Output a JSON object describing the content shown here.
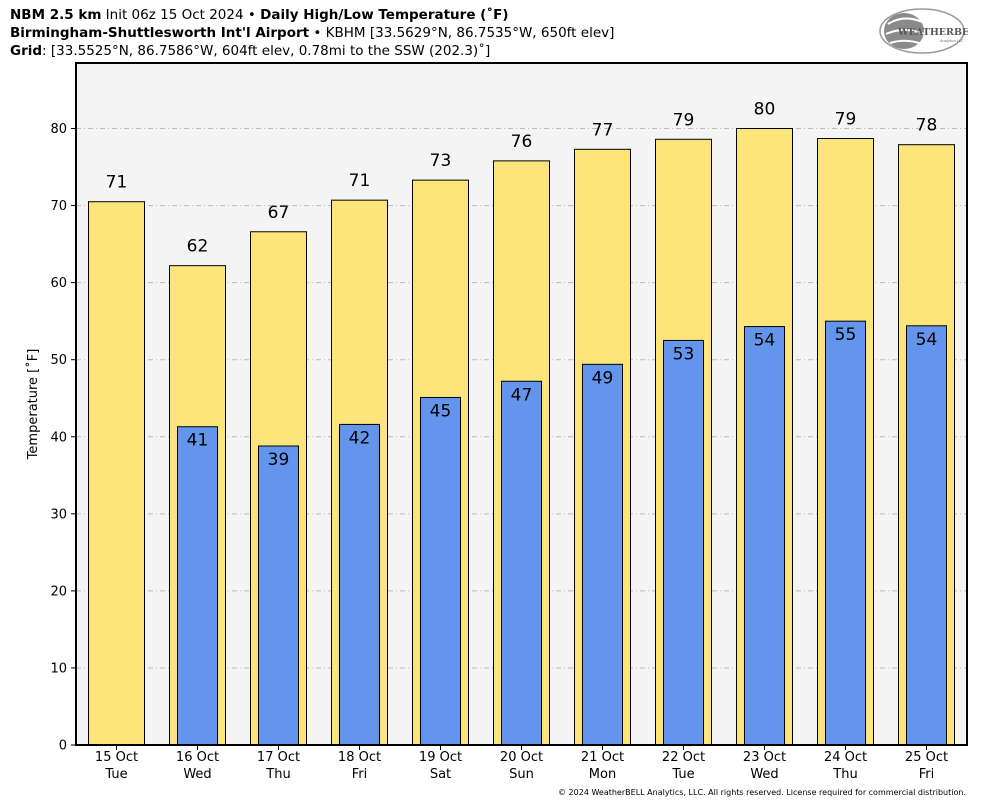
{
  "header": {
    "line1_bold1": "NBM 2.5 km",
    "line1_normal": " Init 06z 15 Oct 2024 • ",
    "line1_bold2": "Daily High/Low Temperature (˚F)",
    "line2_bold": "Birmingham-Shuttlesworth Int'l Airport",
    "line2_normal": " • KBHM [33.5629°N, 86.7535°W, 650ft elev]",
    "line3_bold": "Grid",
    "line3_normal": ": [33.5525°N, 86.7586°W, 604ft elev, 0.78mi to the SSW (202.3)˚]"
  },
  "logo": {
    "text": "WEATHERBELL",
    "subtext": "Analytics LLC"
  },
  "footer": "© 2024 WeatherBELL Analytics, LLC. All rights reserved. License required for commercial distribution.",
  "chart_data": {
    "type": "bar",
    "title": "Daily High/Low Temperature (˚F)",
    "ylabel": "Temperature [˚F]",
    "xlabel": "",
    "ylim": [
      0,
      88.5
    ],
    "yticks": [
      0,
      10,
      20,
      30,
      40,
      50,
      60,
      70,
      80
    ],
    "grid": true,
    "categories": [
      [
        "15 Oct",
        "Tue"
      ],
      [
        "16 Oct",
        "Wed"
      ],
      [
        "17 Oct",
        "Thu"
      ],
      [
        "18 Oct",
        "Fri"
      ],
      [
        "19 Oct",
        "Sat"
      ],
      [
        "20 Oct",
        "Sun"
      ],
      [
        "21 Oct",
        "Mon"
      ],
      [
        "22 Oct",
        "Tue"
      ],
      [
        "23 Oct",
        "Wed"
      ],
      [
        "24 Oct",
        "Thu"
      ],
      [
        "25 Oct",
        "Fri"
      ]
    ],
    "series": [
      {
        "values": [
          70.5,
          62.2,
          66.6,
          70.7,
          73.3,
          75.8,
          77.3,
          78.6,
          80.0,
          78.7,
          77.9
        ],
        "labels": [
          "71",
          "62",
          "67",
          "71",
          "73",
          "76",
          "77",
          "79",
          "80",
          "79",
          "78"
        ],
        "color": "#fde57c"
      },
      {
        "values": [
          null,
          41.3,
          38.8,
          41.6,
          45.1,
          47.2,
          49.4,
          52.5,
          54.3,
          55.0,
          54.4
        ],
        "labels": [
          "",
          "41",
          "39",
          "42",
          "45",
          "47",
          "49",
          "53",
          "54",
          "55",
          "54"
        ],
        "color": "#6495ec"
      }
    ],
    "colors": {
      "plot_bg": "#f4f4f4",
      "grid": "#bbbbbb"
    }
  }
}
